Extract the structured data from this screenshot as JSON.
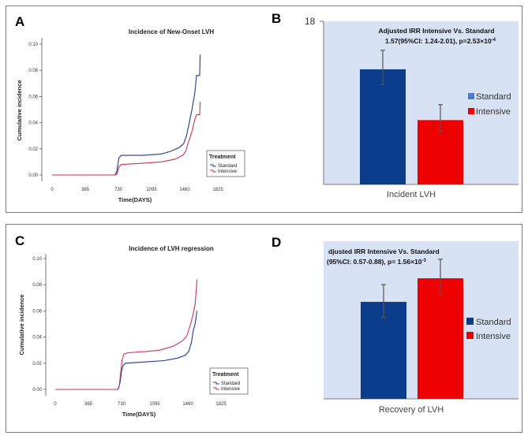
{
  "panels": {
    "a": "A",
    "b": "B",
    "c": "C",
    "d": "D"
  },
  "chart_data": [
    {
      "type": "line",
      "id": "A",
      "title": "Incidence of New-Onset LVH",
      "xlabel": "Time(DAYS)",
      "ylabel": "Cumulative incidence",
      "xlim": [
        0,
        1825
      ],
      "ylim": [
        0,
        0.1
      ],
      "xticks": [
        0,
        365,
        730,
        1095,
        1460,
        1825
      ],
      "yticks": [
        0.0,
        0.02,
        0.04,
        0.06,
        0.08,
        0.1
      ],
      "yticklabels": [
        "0.00",
        "0.02",
        "0.04",
        "0.06",
        "0.08",
        "0.10"
      ],
      "legend_title": "Treatment",
      "series": [
        {
          "name": "Standard",
          "color": "#1f3a93",
          "points": [
            [
              0,
              0
            ],
            [
              690,
              0
            ],
            [
              710,
              0.002
            ],
            [
              725,
              0.008
            ],
            [
              735,
              0.013
            ],
            [
              760,
              0.015
            ],
            [
              1000,
              0.015
            ],
            [
              1200,
              0.016
            ],
            [
              1300,
              0.018
            ],
            [
              1400,
              0.021
            ],
            [
              1450,
              0.024
            ],
            [
              1480,
              0.03
            ],
            [
              1510,
              0.04
            ],
            [
              1540,
              0.05
            ],
            [
              1570,
              0.062
            ],
            [
              1590,
              0.076
            ],
            [
              1610,
              0.076
            ],
            [
              1625,
              0.076
            ],
            [
              1630,
              0.092
            ]
          ]
        },
        {
          "name": "Intensive",
          "color": "#c8325a",
          "points": [
            [
              0,
              0
            ],
            [
              700,
              0
            ],
            [
              715,
              0.001
            ],
            [
              735,
              0.006
            ],
            [
              760,
              0.008
            ],
            [
              1000,
              0.009
            ],
            [
              1200,
              0.01
            ],
            [
              1350,
              0.012
            ],
            [
              1440,
              0.015
            ],
            [
              1470,
              0.018
            ],
            [
              1500,
              0.025
            ],
            [
              1540,
              0.033
            ],
            [
              1570,
              0.042
            ],
            [
              1590,
              0.046
            ],
            [
              1610,
              0.046
            ],
            [
              1625,
              0.046
            ],
            [
              1630,
              0.056
            ]
          ]
        }
      ]
    },
    {
      "type": "bar",
      "id": "B",
      "ytick_label": "18",
      "ylim": [
        0,
        18
      ],
      "annotation_line1": "Adjusted IRR Intensive Vs. Standard",
      "annotation_line2": "1.57(95%CI: 1.24-2.01), p=2.53×10",
      "annotation_sup": "-4",
      "xlabel": "Incident LVH",
      "series": [
        {
          "name": "Standard",
          "color": "#0b3d8c",
          "value": 12.7,
          "err": [
            11.0,
            14.8
          ]
        },
        {
          "name": "Intensive",
          "color": "#ee0000",
          "value": 7.1,
          "err": [
            5.9,
            8.8
          ]
        }
      ]
    },
    {
      "type": "line",
      "id": "C",
      "title": "Incidence of LVH regression",
      "xlabel": "Time(DAYS)",
      "ylabel": "Cumulative incidence",
      "xlim": [
        0,
        1825
      ],
      "ylim": [
        0,
        0.1
      ],
      "xticks": [
        0,
        365,
        730,
        1095,
        1460,
        1825
      ],
      "yticks": [
        0.0,
        0.02,
        0.04,
        0.06,
        0.08,
        0.1
      ],
      "yticklabels": [
        "0.00",
        "0.02",
        "0.04",
        "0.06",
        "0.08",
        "0.10"
      ],
      "legend_title": "Treatment",
      "series": [
        {
          "name": "Standard",
          "color": "#1f3a93",
          "points": [
            [
              0,
              0
            ],
            [
              680,
              0
            ],
            [
              700,
              0.001
            ],
            [
              715,
              0.006
            ],
            [
              730,
              0.014
            ],
            [
              745,
              0.018
            ],
            [
              770,
              0.02
            ],
            [
              1000,
              0.021
            ],
            [
              1200,
              0.022
            ],
            [
              1350,
              0.024
            ],
            [
              1430,
              0.026
            ],
            [
              1470,
              0.029
            ],
            [
              1500,
              0.036
            ],
            [
              1520,
              0.045
            ],
            [
              1540,
              0.05
            ],
            [
              1555,
              0.057
            ],
            [
              1560,
              0.06
            ]
          ]
        },
        {
          "name": "Intensive",
          "color": "#c8325a",
          "points": [
            [
              0,
              0
            ],
            [
              690,
              0
            ],
            [
              705,
              0.003
            ],
            [
              720,
              0.012
            ],
            [
              735,
              0.022
            ],
            [
              755,
              0.027
            ],
            [
              800,
              0.028
            ],
            [
              1000,
              0.029
            ],
            [
              1150,
              0.03
            ],
            [
              1300,
              0.033
            ],
            [
              1400,
              0.037
            ],
            [
              1450,
              0.041
            ],
            [
              1490,
              0.05
            ],
            [
              1520,
              0.058
            ],
            [
              1540,
              0.065
            ],
            [
              1555,
              0.078
            ],
            [
              1560,
              0.084
            ]
          ]
        }
      ]
    },
    {
      "type": "bar",
      "id": "D",
      "ylim": [
        0,
        18
      ],
      "annotation_line1": "djusted IRR Intensive Vs. Standard",
      "annotation_line2": "(95%CI: 0.57-0.88), p= 1.56×10",
      "annotation_sup": "-3",
      "xlabel": "Recovery of LVH",
      "series": [
        {
          "name": "Standard",
          "color": "#0b3d8c",
          "value": 10.7,
          "err": [
            9.0,
            12.6
          ]
        },
        {
          "name": "Intensive",
          "color": "#ee0000",
          "value": 13.3,
          "err": [
            11.5,
            15.4
          ]
        }
      ]
    }
  ]
}
